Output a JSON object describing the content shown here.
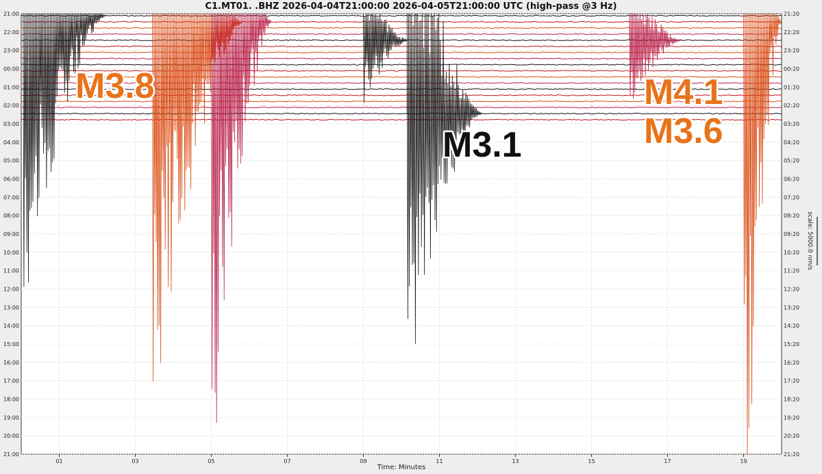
{
  "chart_data": {
    "type": "line",
    "title": "C1.MT01.  .BHZ 2026-04-04T21:00:00 2026-04-05T21:00:00 UTC (high-pass @3 Hz)",
    "xlabel": "Time: Minutes",
    "x_ticks": [
      "01",
      "03",
      "05",
      "07",
      "09",
      "11",
      "13",
      "15",
      "17",
      "19"
    ],
    "x_tick_values": [
      1,
      3,
      5,
      7,
      9,
      11,
      13,
      15,
      17,
      19
    ],
    "xlim": [
      0,
      20
    ],
    "left_ticks": [
      "21:00",
      "22:00",
      "23:00",
      "00:00",
      "01:00",
      "02:00",
      "03:00",
      "04:00",
      "05:00",
      "06:00",
      "07:00",
      "08:00",
      "09:00",
      "10:00",
      "11:00",
      "12:00",
      "13:00",
      "14:00",
      "15:00",
      "16:00",
      "17:00",
      "18:00",
      "19:00",
      "20:00",
      "21:00"
    ],
    "right_ticks": [
      "21:20",
      "22:20",
      "23:20",
      "00:20",
      "01:20",
      "02:20",
      "03:20",
      "04:20",
      "05:20",
      "06:20",
      "07:20",
      "08:20",
      "09:20",
      "10:20",
      "11:20",
      "12:20",
      "13:20",
      "14:20",
      "15:20",
      "16:20",
      "17:20",
      "18:20",
      "19:20",
      "20:20",
      "21:20"
    ],
    "scale_label": "scale: 5000.0 nm/s",
    "grid": true,
    "trace_colors": [
      "#111111",
      "#c1121f",
      "#d9480f",
      "#b71c47"
    ],
    "trace_lines": 18,
    "rows_per_hour": 3,
    "events": [
      {
        "row": 0,
        "x": 0.05,
        "color": "#111111",
        "duration": 2.2,
        "amp": 2.6
      },
      {
        "row": 1,
        "x": 3.45,
        "color": "#d9480f",
        "duration": 2.4,
        "amp": 3.5
      },
      {
        "row": 1,
        "x": 5.0,
        "color": "#b71c47",
        "duration": 1.6,
        "amp": 4.0
      },
      {
        "row": 16,
        "x": 10.15,
        "color": "#111111",
        "duration": 2.0,
        "amp": 2.4
      },
      {
        "row": 4,
        "x": 9.0,
        "color": "#111111",
        "duration": 1.2,
        "amp": 0.6
      },
      {
        "row": 4,
        "x": 16.0,
        "color": "#b71c47",
        "duration": 1.4,
        "amp": 0.6
      },
      {
        "row": 1,
        "x": 19.0,
        "color": "#d9480f",
        "duration": 1.0,
        "amp": 5.0
      }
    ],
    "annotations": [
      {
        "text": "M3.8",
        "color": "#e8731a"
      },
      {
        "text": "M3.1",
        "color": "#111111"
      },
      {
        "text": "M4.1",
        "color": "#e8731a"
      },
      {
        "text": "M3.6",
        "color": "#e8731a"
      }
    ]
  }
}
